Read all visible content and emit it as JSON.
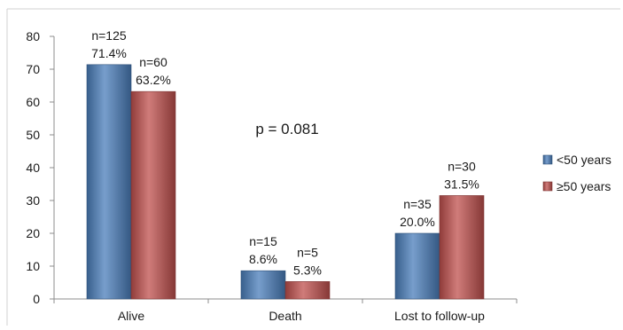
{
  "chart_data": {
    "type": "bar",
    "categories": [
      "Alive",
      "Death",
      "Lost to follow-up"
    ],
    "series": [
      {
        "name": "<50 years",
        "color": "#4a7ebb",
        "values": [
          71.4,
          8.6,
          20.0
        ],
        "labels": [
          [
            "n=125",
            "71.4%"
          ],
          [
            "n=15",
            "8.6%"
          ],
          [
            "n=35",
            "20.0%"
          ]
        ]
      },
      {
        "name": "≥50 years",
        "color": "#c0504d",
        "values": [
          63.2,
          5.3,
          31.5
        ],
        "labels": [
          [
            "n=60",
            "63.2%"
          ],
          [
            "n=5",
            "5.3%"
          ],
          [
            "n=30",
            "31.5%"
          ]
        ]
      }
    ],
    "annotation": "p = 0.081",
    "ylim": [
      0,
      80
    ],
    "yticks": [
      "0",
      "10",
      "20",
      "30",
      "40",
      "50",
      "60",
      "70",
      "80"
    ],
    "grid": false,
    "legend_position": "right"
  }
}
